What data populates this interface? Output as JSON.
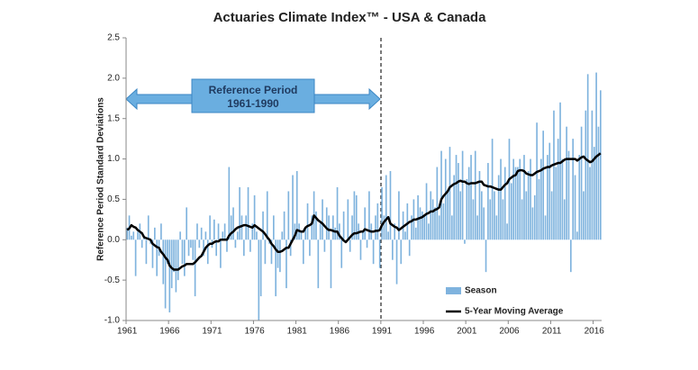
{
  "chart_data": {
    "type": "bar_line",
    "title": "Actuaries Climate Index™ - USA & Canada",
    "y_label": "Reference Period Standard Deviations",
    "annotation": {
      "label": "Reference Period",
      "range": "1961-1990"
    },
    "categories": [
      "1961",
      null,
      null,
      null,
      null,
      null,
      null,
      null,
      null,
      null,
      null,
      null,
      null,
      null,
      null,
      null,
      null,
      null,
      null,
      null,
      "1966",
      null,
      null,
      null,
      null,
      null,
      null,
      null,
      null,
      null,
      null,
      null,
      null,
      null,
      null,
      null,
      null,
      null,
      null,
      null,
      "1971",
      null,
      null,
      null,
      null,
      null,
      null,
      null,
      null,
      null,
      null,
      null,
      null,
      null,
      null,
      null,
      null,
      null,
      null,
      null,
      "1976",
      null,
      null,
      null,
      null,
      null,
      null,
      null,
      null,
      null,
      null,
      null,
      null,
      null,
      null,
      null,
      null,
      null,
      null,
      null,
      "1981",
      null,
      null,
      null,
      null,
      null,
      null,
      null,
      null,
      null,
      null,
      null,
      null,
      null,
      null,
      null,
      null,
      null,
      null,
      null,
      "1986",
      null,
      null,
      null,
      null,
      null,
      null,
      null,
      null,
      null,
      null,
      null,
      null,
      null,
      null,
      null,
      null,
      null,
      null,
      null,
      "1991",
      null,
      null,
      null,
      null,
      null,
      null,
      null,
      null,
      null,
      null,
      null,
      null,
      null,
      null,
      null,
      null,
      null,
      null,
      null,
      "1996",
      null,
      null,
      null,
      null,
      null,
      null,
      null,
      null,
      null,
      null,
      null,
      null,
      null,
      null,
      null,
      null,
      null,
      null,
      null,
      "2001",
      null,
      null,
      null,
      null,
      null,
      null,
      null,
      null,
      null,
      null,
      null,
      null,
      null,
      null,
      null,
      null,
      null,
      null,
      null,
      "2006",
      null,
      null,
      null,
      null,
      null,
      null,
      null,
      null,
      null,
      null,
      null,
      null,
      null,
      null,
      null,
      null,
      null,
      null,
      null,
      "2011",
      null,
      null,
      null,
      null,
      null,
      null,
      null,
      null,
      null,
      null,
      null,
      null,
      null,
      null,
      null,
      null,
      null,
      null,
      null,
      "2016",
      null,
      null,
      null
    ],
    "series": [
      {
        "name": "Season",
        "kind": "bar",
        "color": "#7fb3de",
        "values": [
          0.15,
          0.3,
          0.05,
          0.1,
          -0.45,
          0.1,
          0.2,
          -0.1,
          0.05,
          -0.3,
          0.3,
          -0.05,
          -0.35,
          0.15,
          -0.45,
          -0.2,
          0.2,
          -0.55,
          -0.85,
          -0.3,
          -0.9,
          -0.6,
          -0.4,
          -0.65,
          -0.5,
          0.1,
          -0.3,
          -0.45,
          0.4,
          -0.2,
          -0.1,
          -0.25,
          -0.7,
          0.2,
          -0.1,
          0.15,
          -0.2,
          0.1,
          -0.3,
          0.3,
          -0.1,
          0.25,
          -0.2,
          0.2,
          -0.35,
          0.1,
          0.2,
          -0.15,
          0.9,
          0.3,
          0.4,
          -0.1,
          0.1,
          0.65,
          0.3,
          -0.2,
          0.3,
          0.65,
          -0.15,
          0.2,
          0.55,
          0.1,
          -1.0,
          -0.7,
          0.35,
          -0.3,
          0.6,
          -0.05,
          -0.3,
          0.3,
          -0.7,
          -0.35,
          -0.4,
          0.1,
          0.35,
          -0.6,
          0.6,
          -0.2,
          0.8,
          0.2,
          0.85,
          0.2,
          0.1,
          -0.3,
          0.15,
          0.45,
          -0.2,
          0.3,
          0.6,
          0.35,
          -0.6,
          0.2,
          0.5,
          -0.15,
          0.4,
          0.3,
          -0.6,
          0.3,
          0.15,
          0.65,
          0.2,
          -0.35,
          0.35,
          0.0,
          0.5,
          -0.15,
          0.3,
          0.6,
          0.55,
          0.2,
          -0.25,
          0.1,
          0.4,
          -0.1,
          0.6,
          0.2,
          -0.3,
          0.3,
          0.45,
          -0.35,
          0.65,
          0.3,
          0.8,
          0.1,
          0.85,
          -0.25,
          0.2,
          -0.55,
          0.6,
          -0.3,
          0.35,
          0.1,
          0.45,
          -0.2,
          0.3,
          0.5,
          0.15,
          0.55,
          0.4,
          0.35,
          0.3,
          0.7,
          0.2,
          0.6,
          0.5,
          0.4,
          0.9,
          0.3,
          1.1,
          0.45,
          1.0,
          0.6,
          1.15,
          0.3,
          0.8,
          1.05,
          0.95,
          0.6,
          1.1,
          -0.05,
          0.75,
          0.9,
          1.05,
          0.5,
          1.1,
          0.3,
          0.85,
          0.6,
          0.4,
          -0.4,
          0.95,
          0.5,
          1.25,
          0.6,
          0.3,
          0.8,
          1.0,
          0.5,
          0.9,
          0.2,
          1.25,
          0.7,
          1.0,
          0.9,
          0.9,
          1.0,
          0.5,
          1.05,
          0.6,
          0.85,
          1.0,
          0.4,
          0.55,
          1.45,
          0.75,
          1.0,
          1.35,
          0.3,
          1.05,
          1.2,
          0.6,
          1.6,
          0.9,
          1.25,
          1.7,
          1.0,
          0.5,
          1.4,
          1.1,
          -0.4,
          1.25,
          0.8,
          0.1,
          1.05,
          1.4,
          0.6,
          1.6,
          2.05,
          0.9,
          1.6,
          1.15,
          2.07,
          1.4,
          1.85
        ]
      },
      {
        "name": "5-Year Moving Average",
        "kind": "line",
        "color": "#000000",
        "values": [
          0.12,
          0.14,
          0.18,
          0.16,
          0.15,
          0.12,
          0.1,
          0.08,
          0.03,
          0.02,
          0.01,
          0.0,
          -0.05,
          -0.07,
          -0.09,
          -0.1,
          -0.15,
          -0.18,
          -0.22,
          -0.25,
          -0.32,
          -0.35,
          -0.37,
          -0.37,
          -0.37,
          -0.35,
          -0.33,
          -0.32,
          -0.3,
          -0.3,
          -0.3,
          -0.3,
          -0.28,
          -0.25,
          -0.22,
          -0.2,
          -0.15,
          -0.1,
          -0.07,
          -0.05,
          -0.05,
          -0.03,
          -0.02,
          -0.02,
          0.0,
          0.0,
          0.0,
          0.0,
          0.05,
          0.08,
          0.1,
          0.13,
          0.15,
          0.16,
          0.17,
          0.18,
          0.18,
          0.17,
          0.16,
          0.15,
          0.18,
          0.16,
          0.14,
          0.12,
          0.1,
          0.07,
          0.03,
          0.0,
          -0.05,
          -0.08,
          -0.12,
          -0.15,
          -0.15,
          -0.14,
          -0.12,
          -0.1,
          -0.1,
          -0.05,
          0.0,
          0.05,
          0.12,
          0.11,
          0.1,
          0.1,
          0.15,
          0.17,
          0.18,
          0.2,
          0.3,
          0.27,
          0.24,
          0.22,
          0.2,
          0.17,
          0.14,
          0.12,
          0.12,
          0.11,
          0.1,
          0.1,
          0.05,
          0.02,
          -0.01,
          -0.03,
          0.0,
          0.03,
          0.06,
          0.08,
          0.08,
          0.09,
          0.1,
          0.1,
          0.13,
          0.12,
          0.11,
          0.1,
          0.1,
          0.11,
          0.11,
          0.12,
          0.18,
          0.22,
          0.25,
          0.28,
          0.2,
          0.18,
          0.16,
          0.15,
          0.12,
          0.14,
          0.16,
          0.18,
          0.2,
          0.22,
          0.23,
          0.25,
          0.25,
          0.26,
          0.27,
          0.28,
          0.3,
          0.32,
          0.33,
          0.35,
          0.35,
          0.37,
          0.38,
          0.4,
          0.5,
          0.54,
          0.57,
          0.6,
          0.65,
          0.67,
          0.69,
          0.7,
          0.72,
          0.73,
          0.72,
          0.72,
          0.7,
          0.69,
          0.7,
          0.7,
          0.7,
          0.71,
          0.72,
          0.72,
          0.68,
          0.67,
          0.66,
          0.66,
          0.65,
          0.64,
          0.63,
          0.62,
          0.62,
          0.65,
          0.68,
          0.7,
          0.75,
          0.77,
          0.79,
          0.8,
          0.85,
          0.86,
          0.86,
          0.85,
          0.82,
          0.81,
          0.8,
          0.8,
          0.82,
          0.84,
          0.85,
          0.86,
          0.88,
          0.89,
          0.9,
          0.9,
          0.92,
          0.93,
          0.94,
          0.95,
          0.95,
          0.97,
          0.99,
          1.0,
          1.0,
          1.0,
          1.0,
          1.0,
          0.98,
          1.0,
          1.02,
          1.03,
          1.0,
          0.98,
          0.96,
          0.97,
          1.0,
          1.03,
          1.05,
          1.07
        ]
      }
    ],
    "ylim": [
      -1.0,
      2.5
    ],
    "yticks": [
      2.5,
      {
        "value": 2.0,
        "label": "2.0"
      },
      1.5,
      {
        "value": 1.0,
        "label": "1.0"
      },
      0.5,
      {
        "value": 0.0,
        "label": "0.0"
      },
      -0.5,
      {
        "value": -1.0,
        "label": "-1.0"
      }
    ],
    "grid": false
  }
}
